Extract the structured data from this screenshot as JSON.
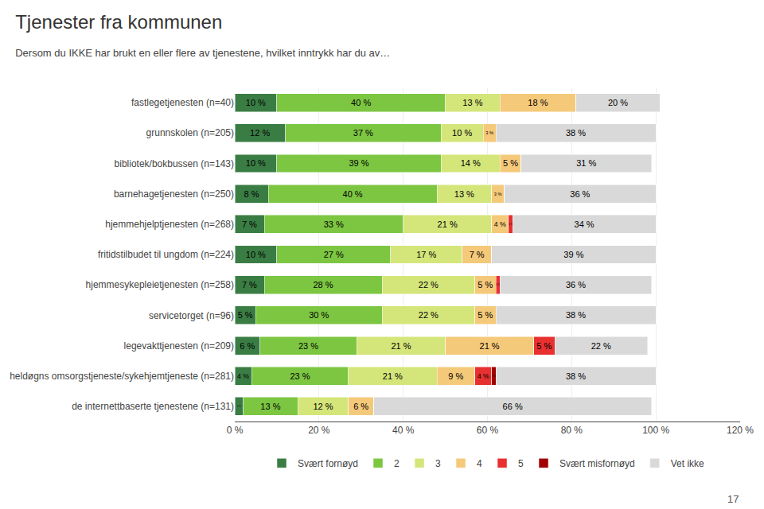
{
  "chart_data": {
    "type": "bar",
    "orientation": "horizontal",
    "stacked": true,
    "title": "Tjenester fra kommunen",
    "subtitle": "Dersom du IKKE har brukt en eller flere av tjenestene, hvilket inntrykk har du av…",
    "annotations": [
      "17"
    ],
    "categories": [
      "fastlegetjenesten (n=40)",
      "grunnskolen (n=205)",
      "bibliotek/bokbussen (n=143)",
      "barnehagetjenesten (n=250)",
      "hjemmehjelptjenesten (n=268)",
      "fritidstilbudet til ungdom (n=224)",
      "hjemmesykepleietjenesten (n=258)",
      "servicetorget (n=96)",
      "legevakttjenesten (n=209)",
      "heldøgns omsorgstjeneste/sykehjemtjeneste (n=281)",
      "de internettbaserte tjenestene (n=131)"
    ],
    "series": [
      {
        "name": "Svært fornøyd",
        "color": "#3a7d44",
        "values": [
          10,
          12,
          10,
          8,
          7,
          10,
          7,
          5,
          6,
          4,
          2
        ],
        "value_labels": [
          "10 %",
          "12 %",
          "10 %",
          "8 %",
          "7 %",
          "10 %",
          "7 %",
          "5 %",
          "6 %",
          "4 %",
          "2 %"
        ]
      },
      {
        "name": "2",
        "color": "#7dc642",
        "values": [
          40,
          37,
          39,
          40,
          33,
          27,
          28,
          30,
          23,
          23,
          13
        ],
        "value_labels": [
          "40 %",
          "37 %",
          "39 %",
          "40 %",
          "33 %",
          "27 %",
          "28 %",
          "30 %",
          "23 %",
          "23 %",
          "13 %"
        ]
      },
      {
        "name": "3",
        "color": "#d4e57a",
        "values": [
          13,
          10,
          14,
          13,
          21,
          17,
          22,
          22,
          21,
          21,
          12
        ],
        "value_labels": [
          "13 %",
          "10 %",
          "14 %",
          "13 %",
          "21 %",
          "17 %",
          "22 %",
          "22 %",
          "21 %",
          "21 %",
          "12 %"
        ]
      },
      {
        "name": "4",
        "color": "#f5c97a",
        "values": [
          18,
          3,
          5,
          3,
          4,
          7,
          5,
          5,
          21,
          9,
          6
        ],
        "value_labels": [
          "18 %",
          "3 %",
          "5 %",
          "3 %",
          "4 %",
          "7 %",
          "5 %",
          "5 %",
          "21 %",
          "9 %",
          "6 %"
        ]
      },
      {
        "name": "5",
        "color": "#e83030",
        "values": [
          0,
          0,
          0,
          0,
          1,
          0,
          1,
          0,
          5,
          4,
          0
        ],
        "value_labels": [
          null,
          null,
          null,
          null,
          "1 %",
          null,
          "1 %",
          null,
          "5 %",
          "4 %",
          null
        ]
      },
      {
        "name": "Svært misfornøyd",
        "color": "#a00000",
        "values": [
          0,
          0,
          0,
          0,
          0,
          0,
          0,
          0,
          0,
          1,
          0
        ],
        "value_labels": [
          null,
          null,
          null,
          null,
          null,
          null,
          null,
          null,
          null,
          "1 %",
          null
        ]
      },
      {
        "name": "Vet ikke",
        "color": "#d9d9d9",
        "values": [
          20,
          38,
          31,
          36,
          34,
          39,
          36,
          38,
          22,
          38,
          66
        ],
        "value_labels": [
          "20 %",
          "38 %",
          "31 %",
          "36 %",
          "34 %",
          "39 %",
          "36 %",
          "38 %",
          "22 %",
          "38 %",
          "66 %"
        ]
      }
    ],
    "xlim": [
      0,
      120
    ],
    "xticks": [
      {
        "value": 0,
        "label": "0 %"
      },
      {
        "value": 20,
        "label": "20 %"
      },
      {
        "value": 40,
        "label": "40 %"
      },
      {
        "value": 60,
        "label": "60 %"
      },
      {
        "value": 80,
        "label": "80 %"
      },
      {
        "value": 100,
        "label": "100 %"
      },
      {
        "value": 120,
        "label": "120 %"
      }
    ],
    "grid": true,
    "legend": "bottom",
    "data_labels": true
  }
}
